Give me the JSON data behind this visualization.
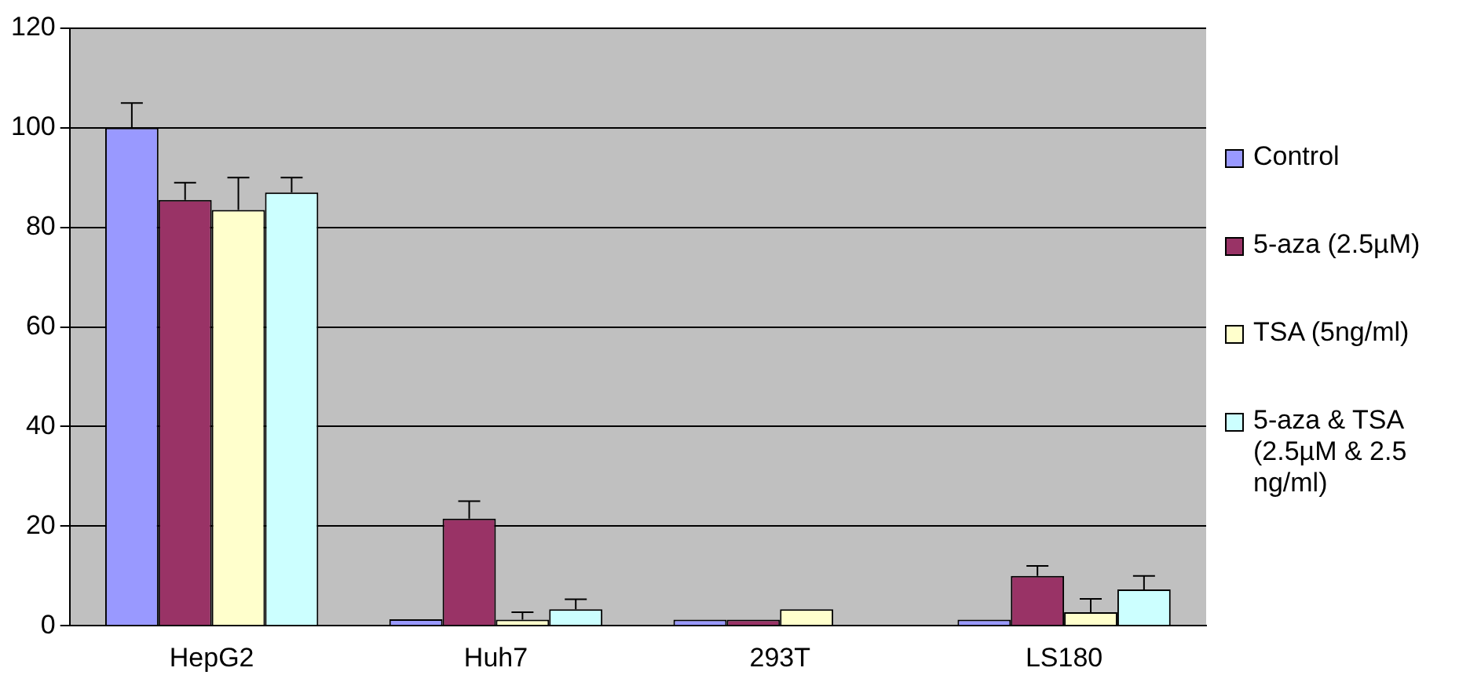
{
  "chart_data": {
    "type": "bar",
    "categories": [
      "HepG2",
      "Huh7",
      "293T",
      "LS180"
    ],
    "series": [
      {
        "name": "Control",
        "color": "#9999ff",
        "values": [
          100,
          1.3,
          1.2,
          1.2
        ],
        "errors": [
          [
            100,
            105
          ],
          null,
          null,
          null
        ]
      },
      {
        "name": "5-aza (2.5µM)",
        "color": "#993366",
        "values": [
          85.5,
          21.5,
          1.2,
          10
        ],
        "errors": [
          [
            85.5,
            89
          ],
          [
            21.5,
            25
          ],
          null,
          [
            10,
            12
          ]
        ]
      },
      {
        "name": "TSA (5ng/ml)",
        "color": "#ffffcc",
        "values": [
          83.5,
          1.2,
          3.3,
          2.7
        ],
        "errors": [
          [
            83.5,
            90
          ],
          [
            1.2,
            2.7
          ],
          null,
          [
            2.7,
            5.4
          ]
        ]
      },
      {
        "name": "5-aza & TSA (2.5µM & 2.5 ng/ml)",
        "color": "#ccffff",
        "values": [
          87,
          3.3,
          null,
          7.3
        ],
        "errors": [
          [
            87,
            90
          ],
          [
            3.3,
            5.3
          ],
          null,
          [
            7.3,
            10
          ]
        ]
      }
    ],
    "ylim": [
      0,
      120
    ],
    "yticks": [
      0,
      20,
      40,
      60,
      80,
      100,
      120
    ],
    "grid": "y",
    "legend": "right"
  }
}
